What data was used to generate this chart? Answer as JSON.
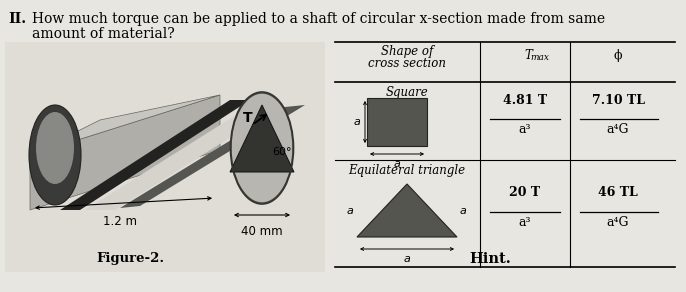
{
  "title_roman": "II.",
  "title_text": "How much torque can be applied to a shaft of circular x-section made from same\namount of material?",
  "table_header_col1": "Shape of\ncross section",
  "table_header_col2": "T",
  "table_header_col2_sub": "max",
  "table_header_col3": "ϕ",
  "row1_shape": "Square",
  "row1_tmax_num": "4.81 T",
  "row1_tmax_den": "a³",
  "row1_phi_num": "7.10 TL",
  "row1_phi_den": "a⁴G",
  "row2_shape": "Equilateral triangle",
  "row2_tmax_num": "20 T",
  "row2_tmax_den": "a³",
  "row2_phi_num": "46 TL",
  "row2_phi_den": "a⁴G",
  "fig_label": "Figure-2.",
  "hint_label": "Hint.",
  "dim_label1": "1.2 m",
  "dim_label2": "40 mm",
  "angle_label": "60°",
  "torque_label": "T",
  "bg_color": "#e8e6e0",
  "paper_color": "#dddbd4",
  "title_fontsize": 10.0,
  "body_fontsize": 9.0
}
